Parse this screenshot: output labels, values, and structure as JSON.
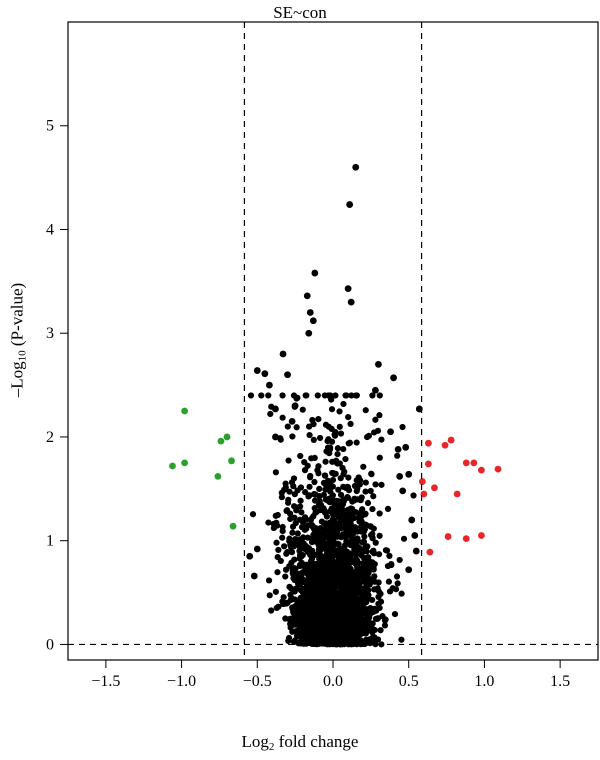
{
  "chart_data": {
    "type": "scatter",
    "title": "SE~con",
    "xlabel": {
      "prefix": "Log",
      "sub": "2",
      "suffix": " fold change"
    },
    "ylabel": {
      "prefix": "–Log",
      "sub": "10",
      "suffix": " (P-value)"
    },
    "xlim": [
      -1.75,
      1.75
    ],
    "ylim": [
      -0.15,
      6.0
    ],
    "x_ticks": [
      -1.5,
      -1.0,
      -0.5,
      0.0,
      0.5,
      1.0,
      1.5
    ],
    "x_tick_labels": [
      "−1.5",
      "−1.0",
      "−0.5",
      "0.0",
      "0.5",
      "1.0",
      "1.5"
    ],
    "y_ticks": [
      0,
      1,
      2,
      3,
      4,
      5
    ],
    "y_tick_labels": [
      "0",
      "1",
      "2",
      "3",
      "4",
      "5"
    ],
    "thresholds": {
      "x": [
        -0.585,
        0.585
      ],
      "y": 0
    },
    "grid": false,
    "legend": "none",
    "colors": {
      "down": "#2ca02c",
      "up": "#e8262a",
      "ns": "#000000"
    },
    "series": [
      {
        "color": "down",
        "points": [
          [
            -0.98,
            2.25
          ],
          [
            -0.7,
            2.0
          ],
          [
            -0.74,
            1.96
          ],
          [
            -0.67,
            1.77
          ],
          [
            -1.06,
            1.72
          ],
          [
            -0.98,
            1.75
          ],
          [
            -0.76,
            1.62
          ],
          [
            -0.66,
            1.14
          ]
        ]
      },
      {
        "color": "up",
        "points": [
          [
            0.63,
            1.94
          ],
          [
            0.78,
            1.97
          ],
          [
            0.74,
            1.92
          ],
          [
            0.63,
            1.74
          ],
          [
            0.88,
            1.75
          ],
          [
            0.93,
            1.75
          ],
          [
            0.98,
            1.68
          ],
          [
            1.09,
            1.69
          ],
          [
            0.59,
            1.57
          ],
          [
            0.67,
            1.51
          ],
          [
            0.6,
            1.45
          ],
          [
            0.82,
            1.45
          ],
          [
            0.76,
            1.04
          ],
          [
            0.88,
            1.02
          ],
          [
            0.98,
            1.05
          ],
          [
            0.64,
            0.89
          ]
        ]
      },
      {
        "color": "ns",
        "points": [
          [
            0.15,
            4.6
          ],
          [
            0.11,
            4.24
          ],
          [
            -0.12,
            3.58
          ],
          [
            0.1,
            3.43
          ],
          [
            -0.17,
            3.36
          ],
          [
            0.12,
            3.3
          ],
          [
            -0.15,
            3.2
          ],
          [
            -0.13,
            3.12
          ],
          [
            -0.16,
            3.0
          ],
          [
            -0.5,
            2.64
          ],
          [
            -0.45,
            2.61
          ],
          [
            0.4,
            2.57
          ],
          [
            -0.42,
            2.5
          ],
          [
            -0.25,
            2.3
          ],
          [
            -0.38,
            2.27
          ],
          [
            0.57,
            2.27
          ],
          [
            -0.38,
            2.0
          ],
          [
            0.43,
            1.88
          ],
          [
            0.44,
            1.62
          ],
          [
            0.5,
            1.64
          ],
          [
            -0.33,
            2.8
          ],
          [
            -0.3,
            2.6
          ],
          [
            0.3,
            2.7
          ],
          [
            0.28,
            2.45
          ],
          [
            -0.27,
            2.15
          ],
          [
            0.38,
            2.05
          ],
          [
            0.48,
            1.9
          ],
          [
            0.46,
            1.48
          ],
          [
            0.52,
            1.2
          ],
          [
            0.54,
            1.05
          ],
          [
            -0.5,
            0.92
          ],
          [
            -0.55,
            0.85
          ],
          [
            0.5,
            0.72
          ],
          [
            -0.52,
            0.66
          ],
          [
            0.55,
            0.9
          ]
        ]
      }
    ]
  }
}
